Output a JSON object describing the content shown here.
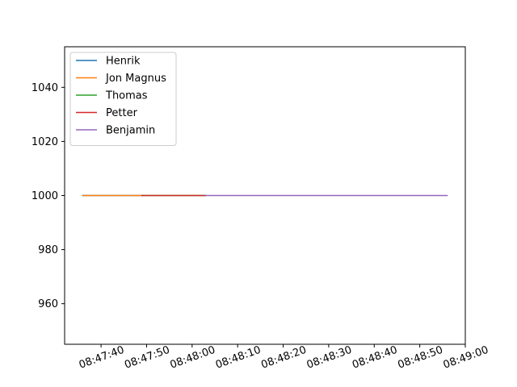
{
  "chart_data": {
    "type": "line",
    "title": "",
    "xlabel": "",
    "ylabel": "",
    "x_axis": {
      "kind": "time",
      "range": [
        "08:47:32",
        "08:49:00"
      ],
      "ticks": [
        "08:47:40",
        "08:47:50",
        "08:48:00",
        "08:48:10",
        "08:48:20",
        "08:48:30",
        "08:48:40",
        "08:48:50",
        "08:49:00"
      ],
      "tick_rotation_deg": 20
    },
    "y_axis": {
      "range": [
        945,
        1055
      ],
      "ticks": [
        960,
        980,
        1000,
        1020,
        1040
      ]
    },
    "grid": false,
    "legend": {
      "placement": "upper-left"
    },
    "series": [
      {
        "name": "Henrik",
        "color": "#1f77b4",
        "points": [
          {
            "x": "08:47:36",
            "y": 1000
          },
          {
            "x": "08:47:49",
            "y": 1000
          }
        ]
      },
      {
        "name": "Jon Magnus",
        "color": "#ff7f0e",
        "points": [
          {
            "x": "08:47:36",
            "y": 1000
          },
          {
            "x": "08:47:49",
            "y": 1000
          }
        ]
      },
      {
        "name": "Thomas",
        "color": "#2ca02c",
        "points": [
          {
            "x": "08:47:49",
            "y": 1000
          },
          {
            "x": "08:48:03",
            "y": 1000
          }
        ]
      },
      {
        "name": "Petter",
        "color": "#d62728",
        "points": [
          {
            "x": "08:47:49",
            "y": 1000
          },
          {
            "x": "08:48:03",
            "y": 1000
          }
        ]
      },
      {
        "name": "Benjamin",
        "color": "#9467bd",
        "points": [
          {
            "x": "08:48:03",
            "y": 1000
          },
          {
            "x": "08:48:56",
            "y": 1000
          }
        ]
      }
    ]
  }
}
